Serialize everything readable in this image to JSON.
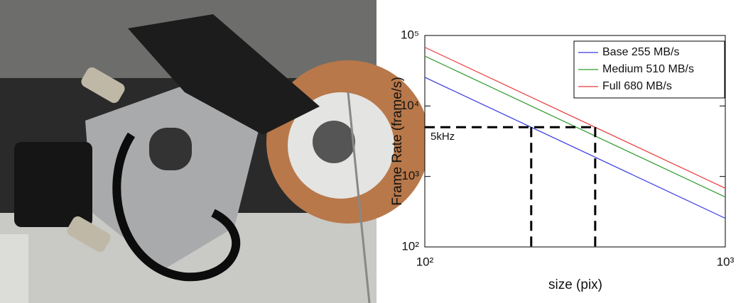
{
  "chart_data": {
    "type": "line",
    "xlabel": "size (pix)",
    "ylabel": "Frame Rate (frame/s)",
    "x": [
      100,
      1000
    ],
    "series": [
      {
        "name": "Base 255 MB/s",
        "color": "#3a3adf",
        "values": [
          25500,
          255
        ]
      },
      {
        "name": "Medium 510 MB/s",
        "color": "#2e9a2e",
        "values": [
          51000,
          510
        ]
      },
      {
        "name": "Full 680 MB/s",
        "color": "#e83a3a",
        "values": [
          68000,
          680
        ]
      }
    ],
    "xscale": "log",
    "yscale": "log",
    "xlim": [
      100,
      1000
    ],
    "ylim": [
      100,
      100000
    ],
    "xticks": [
      {
        "value": 100,
        "label": "10²"
      },
      {
        "value": 1000,
        "label": "10³"
      }
    ],
    "yticks": [
      {
        "value": 100,
        "label": "10²"
      },
      {
        "value": 1000,
        "label": "10³"
      },
      {
        "value": 10000,
        "label": "10⁴"
      },
      {
        "value": 100000,
        "label": "10⁵"
      }
    ],
    "grid": false,
    "legend": "upper right",
    "reference_hline": 5000,
    "reference_vlines": [
      226,
      369
    ],
    "annotation": "5kHz"
  }
}
